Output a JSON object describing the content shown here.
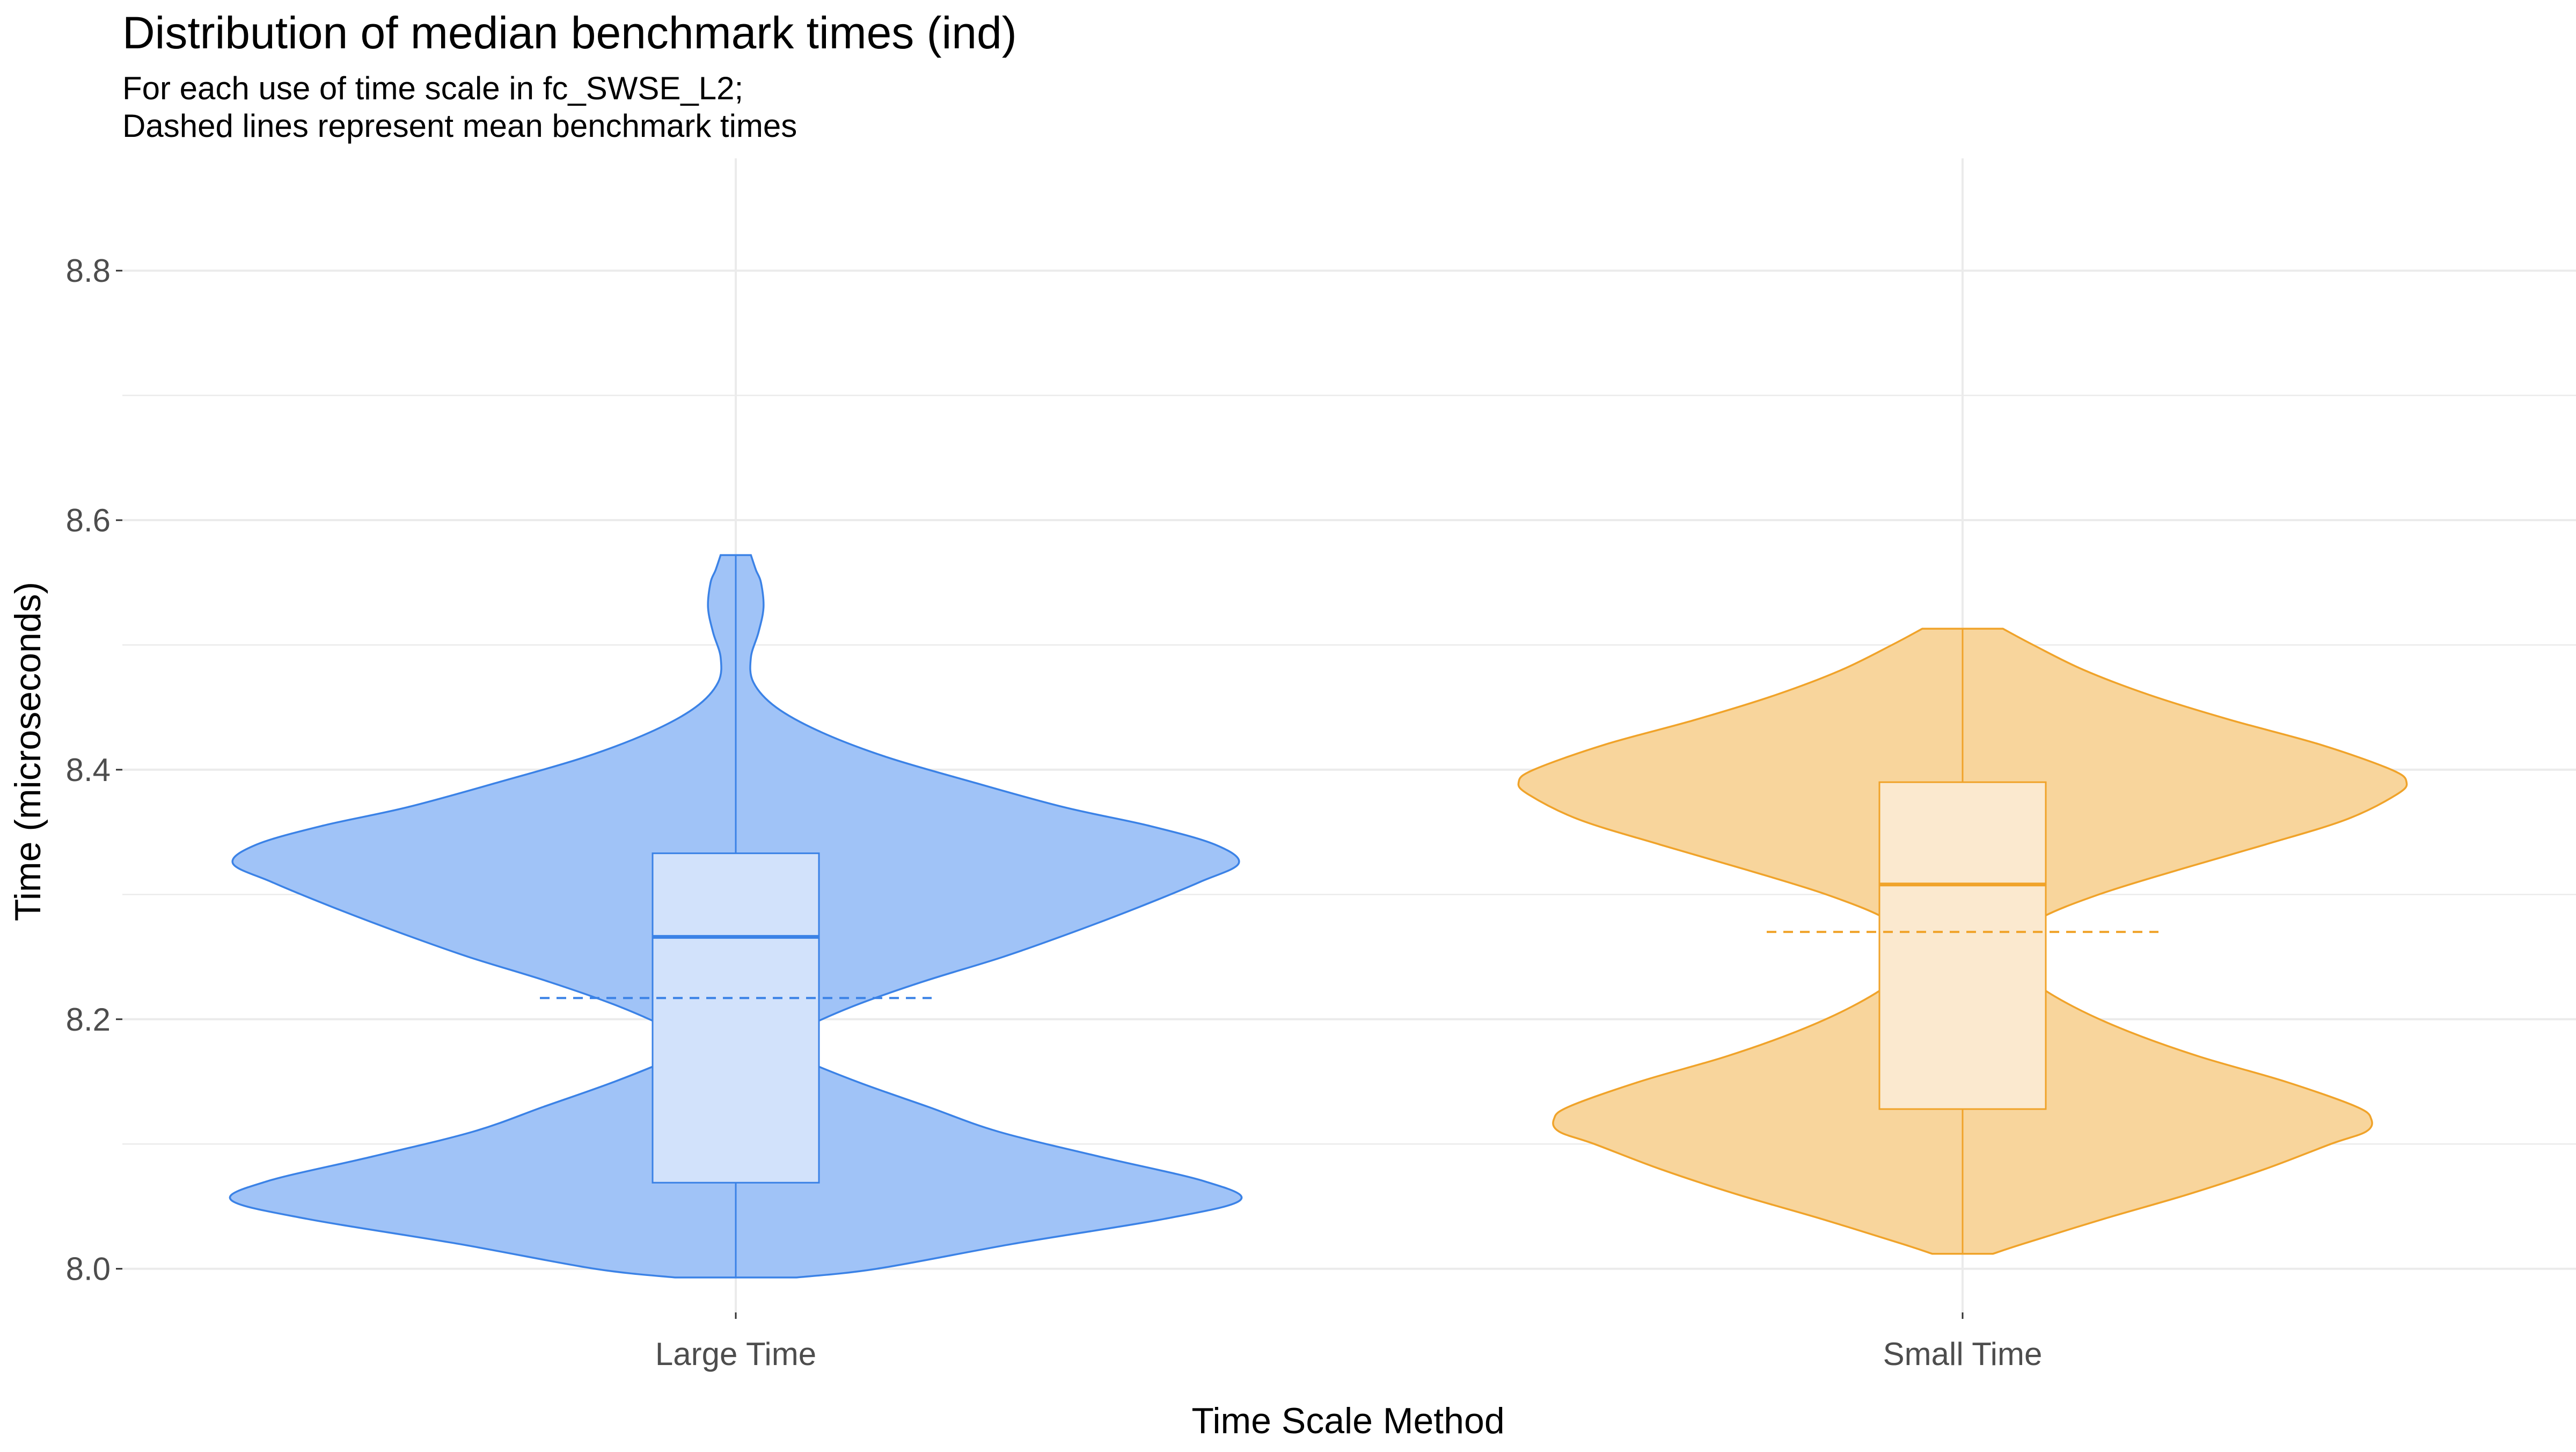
{
  "chart_data": {
    "type": "violin",
    "title": "Distribution of median benchmark times (ind)",
    "subtitle_lines": [
      "For each use of time scale in fc_SWSE_L2;",
      "Dashed lines represent mean benchmark times"
    ],
    "xlabel": "Time Scale Method",
    "ylabel": "Time (microseconds)",
    "ylim": [
      7.965,
      8.89
    ],
    "y_ticks": [
      8.0,
      8.2,
      8.4,
      8.6,
      8.8
    ],
    "y_tick_labels": [
      "8.0",
      "8.2",
      "8.4",
      "8.6",
      "8.8"
    ],
    "grid": true,
    "categories": [
      "Large Time",
      "Small Time"
    ],
    "series": [
      {
        "category": "Large Time",
        "fill_color": "#a0c3f7",
        "line_color": "#3b82e6",
        "box_fill_color": "#d2e2fb",
        "min": 7.993,
        "max": 8.572,
        "q1": 8.069,
        "median": 8.266,
        "q3": 8.333,
        "mean": 8.217,
        "density_profile": [
          [
            7.993,
            0.12
          ],
          [
            8.0,
            0.28
          ],
          [
            8.02,
            0.55
          ],
          [
            8.04,
            0.85
          ],
          [
            8.055,
            1.0
          ],
          [
            8.07,
            0.93
          ],
          [
            8.09,
            0.72
          ],
          [
            8.11,
            0.52
          ],
          [
            8.13,
            0.38
          ],
          [
            8.15,
            0.24
          ],
          [
            8.17,
            0.12
          ],
          [
            8.18,
            0.09
          ],
          [
            8.19,
            0.12
          ],
          [
            8.21,
            0.23
          ],
          [
            8.23,
            0.37
          ],
          [
            8.25,
            0.53
          ],
          [
            8.27,
            0.67
          ],
          [
            8.29,
            0.8
          ],
          [
            8.31,
            0.92
          ],
          [
            8.325,
            0.997
          ],
          [
            8.34,
            0.95
          ],
          [
            8.355,
            0.82
          ],
          [
            8.37,
            0.65
          ],
          [
            8.39,
            0.47
          ],
          [
            8.41,
            0.3
          ],
          [
            8.43,
            0.17
          ],
          [
            8.45,
            0.08
          ],
          [
            8.47,
            0.035
          ],
          [
            8.49,
            0.03
          ],
          [
            8.51,
            0.045
          ],
          [
            8.53,
            0.055
          ],
          [
            8.55,
            0.05
          ],
          [
            8.56,
            0.04
          ],
          [
            8.572,
            0.03
          ]
        ]
      },
      {
        "category": "Small Time",
        "fill_color": "#f8d59c",
        "line_color": "#f0a32a",
        "box_fill_color": "#fbe9cf",
        "min": 8.012,
        "max": 8.513,
        "q1": 8.128,
        "median": 8.308,
        "q3": 8.39,
        "mean": 8.27,
        "density_profile": [
          [
            8.012,
            0.06
          ],
          [
            8.02,
            0.12
          ],
          [
            8.04,
            0.28
          ],
          [
            8.06,
            0.45
          ],
          [
            8.08,
            0.6
          ],
          [
            8.1,
            0.73
          ],
          [
            8.11,
            0.8
          ],
          [
            8.12,
            0.81
          ],
          [
            8.13,
            0.78
          ],
          [
            8.15,
            0.64
          ],
          [
            8.17,
            0.47
          ],
          [
            8.19,
            0.33
          ],
          [
            8.21,
            0.22
          ],
          [
            8.23,
            0.14
          ],
          [
            8.25,
            0.1
          ],
          [
            8.26,
            0.1
          ],
          [
            8.28,
            0.15
          ],
          [
            8.3,
            0.27
          ],
          [
            8.32,
            0.43
          ],
          [
            8.34,
            0.6
          ],
          [
            8.36,
            0.76
          ],
          [
            8.38,
            0.86
          ],
          [
            8.39,
            0.88
          ],
          [
            8.4,
            0.85
          ],
          [
            8.42,
            0.71
          ],
          [
            8.44,
            0.53
          ],
          [
            8.46,
            0.37
          ],
          [
            8.48,
            0.24
          ],
          [
            8.5,
            0.14
          ],
          [
            8.513,
            0.08
          ]
        ]
      }
    ]
  }
}
